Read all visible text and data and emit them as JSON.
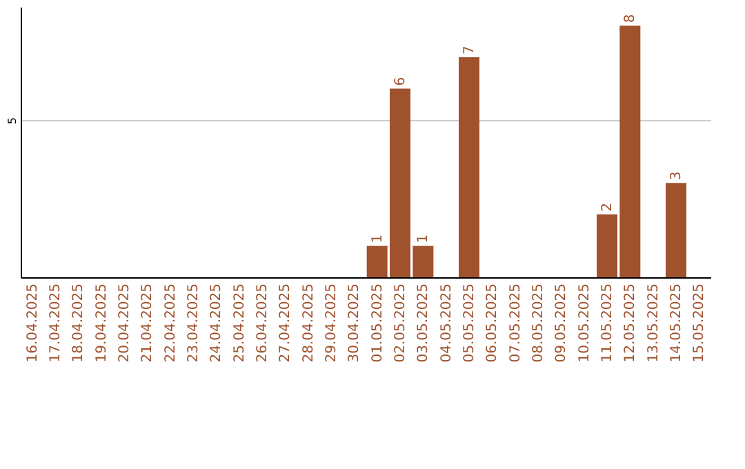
{
  "chart_data": {
    "type": "bar",
    "categories": [
      "16.04.2025",
      "17.04.2025",
      "18.04.2025",
      "19.04.2025",
      "20.04.2025",
      "21.04.2025",
      "22.04.2025",
      "23.04.2025",
      "24.04.2025",
      "25.04.2025",
      "26.04.2025",
      "27.04.2025",
      "28.04.2025",
      "29.04.2025",
      "30.04.2025",
      "01.05.2025",
      "02.05.2025",
      "03.05.2025",
      "04.05.2025",
      "05.05.2025",
      "06.05.2025",
      "07.05.2025",
      "08.05.2025",
      "09.05.2025",
      "10.05.2025",
      "11.05.2025",
      "12.05.2025",
      "13.05.2025",
      "14.05.2025",
      "15.05.2025"
    ],
    "values": [
      null,
      null,
      null,
      null,
      null,
      null,
      null,
      null,
      null,
      null,
      null,
      null,
      null,
      null,
      null,
      1,
      6,
      1,
      null,
      7,
      null,
      null,
      null,
      null,
      null,
      2,
      8,
      null,
      3,
      null
    ],
    "color": "#a0522d",
    "ylim": [
      0,
      8.6
    ],
    "yticks": [
      5
    ],
    "grid": "y",
    "data_labels": true
  }
}
